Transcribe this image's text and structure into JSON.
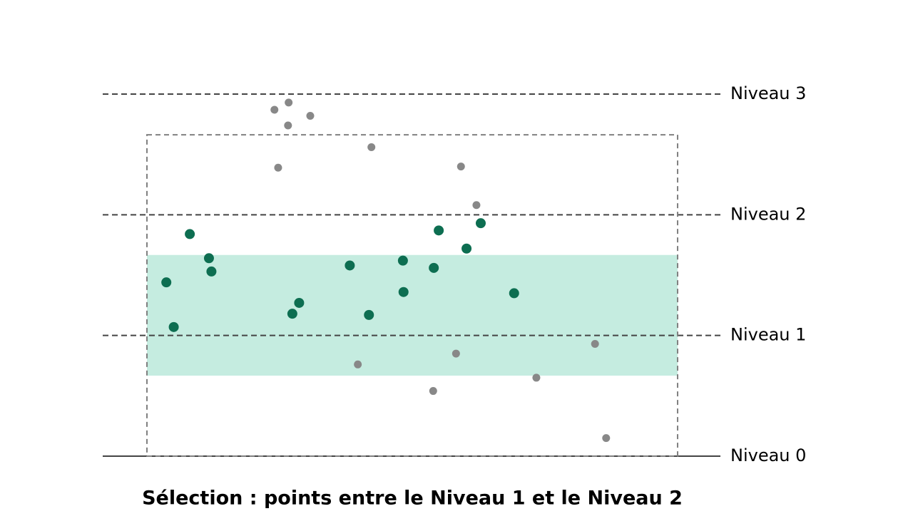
{
  "chart_data": {
    "type": "scatter",
    "title": "Sélection : points entre le Niveau 1 et le Niveau 2",
    "xlim": [
      0,
      10
    ],
    "ylim": [
      0,
      3
    ],
    "yticks": [
      {
        "value": 0,
        "label": "Niveau 0"
      },
      {
        "value": 1,
        "label": "Niveau 1"
      },
      {
        "value": 2,
        "label": "Niveau 2"
      },
      {
        "value": 3,
        "label": "Niveau 3"
      }
    ],
    "band": {
      "ylim": [
        0.667,
        1.667
      ],
      "color": "#c5ece0"
    },
    "selection_box": {
      "xlim": [
        0.716,
        9.307
      ],
      "ylim": [
        0,
        2.663
      ],
      "color": "#808080"
    },
    "series": [
      {
        "color": "#0d6e51",
        "x": [
          1.41,
          1.03,
          1.15,
          1.72,
          1.76,
          3.07,
          3.18,
          4.0,
          4.31,
          4.86,
          4.87,
          5.36,
          5.44,
          5.89,
          6.12,
          6.66
        ],
        "values": [
          1.84,
          1.44,
          1.07,
          1.64,
          1.53,
          1.18,
          1.27,
          1.58,
          1.17,
          1.62,
          1.36,
          1.56,
          1.87,
          1.72,
          1.93,
          1.35
        ]
      },
      {
        "color": "#888888",
        "x": [
          2.78,
          3.01,
          3.0,
          3.36,
          2.84,
          4.35,
          5.8,
          6.05,
          4.13,
          5.72,
          5.35,
          7.02,
          7.97,
          8.15
        ],
        "values": [
          2.87,
          2.93,
          2.74,
          2.82,
          2.39,
          2.56,
          2.4,
          2.08,
          0.76,
          0.85,
          0.54,
          0.65,
          0.93,
          0.15
        ]
      }
    ]
  }
}
